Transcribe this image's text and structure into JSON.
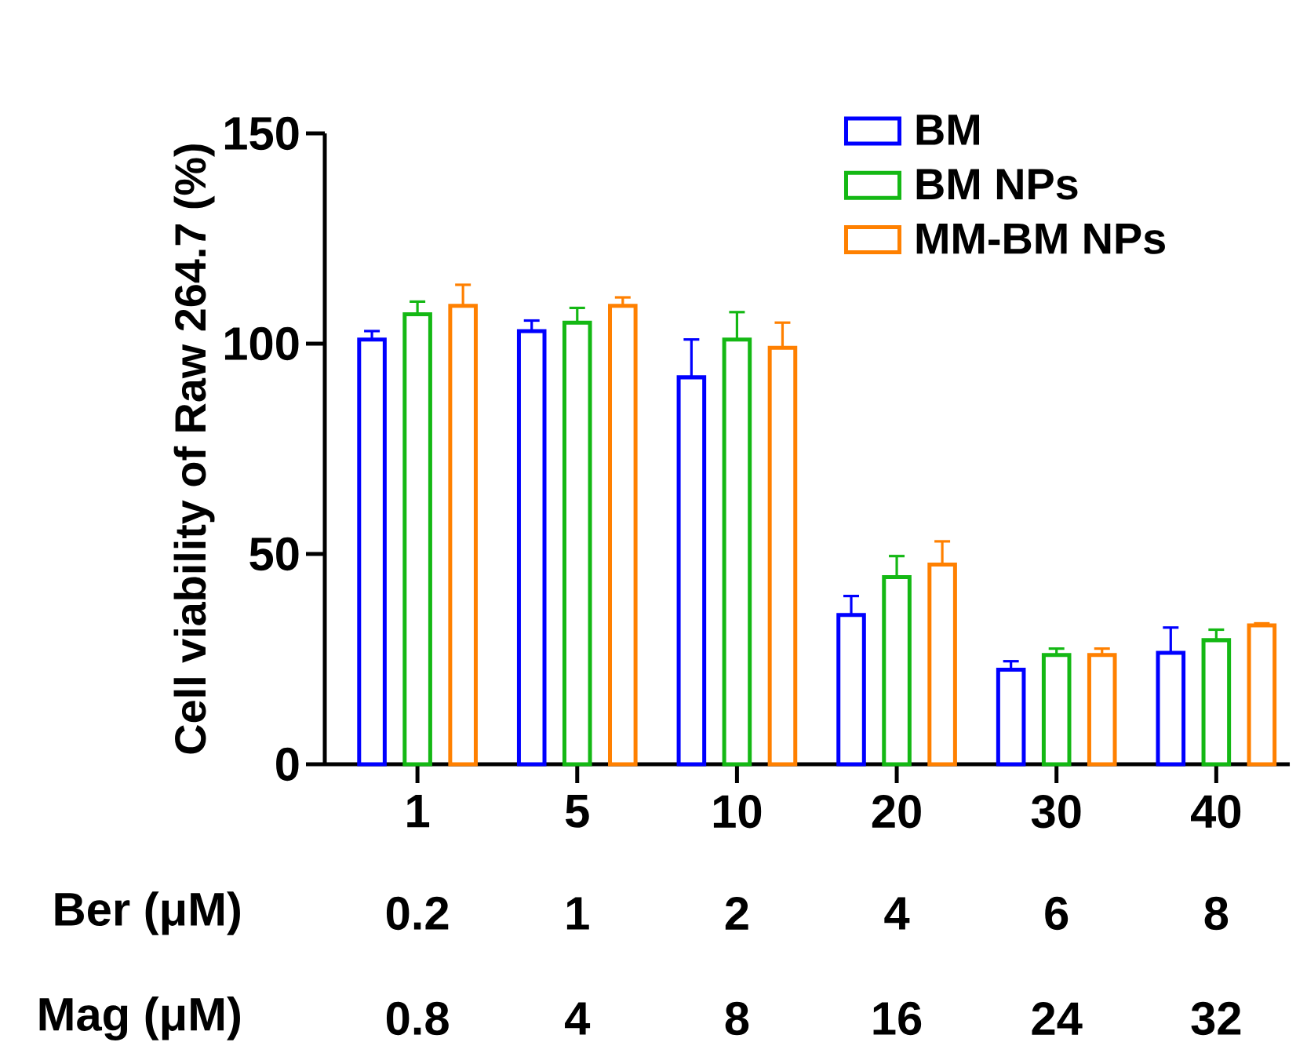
{
  "chart_data": {
    "type": "bar",
    "ylabel": "Cell viability of Raw 264.7 (%)",
    "categories": [
      "1",
      "5",
      "10",
      "20",
      "30",
      "40"
    ],
    "series": [
      {
        "name": "BM",
        "color": "#0000ff",
        "values": [
          101,
          103,
          92,
          35.5,
          22.5,
          26.5
        ],
        "errors": [
          [
            101,
            103
          ],
          [
            103,
            105.5
          ],
          [
            92,
            101
          ],
          [
            35.5,
            40
          ],
          [
            22.5,
            24.5
          ],
          [
            26.5,
            32.5
          ]
        ]
      },
      {
        "name": "BM NPs",
        "color": "#14b814",
        "values": [
          107,
          105,
          101,
          44.5,
          26,
          29.5
        ],
        "errors": [
          [
            107,
            110
          ],
          [
            105,
            108.5
          ],
          [
            101,
            107.5
          ],
          [
            44.5,
            49.5
          ],
          [
            26,
            27.5
          ],
          [
            29.5,
            32
          ]
        ]
      },
      {
        "name": "MM-BM NPs",
        "color": "#ff8000",
        "values": [
          109,
          109,
          99,
          47.5,
          26,
          33
        ],
        "errors": [
          [
            109,
            114
          ],
          [
            109,
            111
          ],
          [
            99,
            105
          ],
          [
            47.5,
            53
          ],
          [
            26,
            27.5
          ],
          [
            33,
            33.5
          ]
        ]
      }
    ],
    "ylim": [
      0,
      150
    ],
    "yticks": [
      0,
      50,
      100,
      150
    ],
    "legend": "top right",
    "annotations": [
      "Ber (μM)",
      "0.2",
      "1",
      "2",
      "4",
      "6",
      "8",
      "Mag (μM)",
      "0.8",
      "4",
      "8",
      "16",
      "24",
      "32"
    ]
  }
}
